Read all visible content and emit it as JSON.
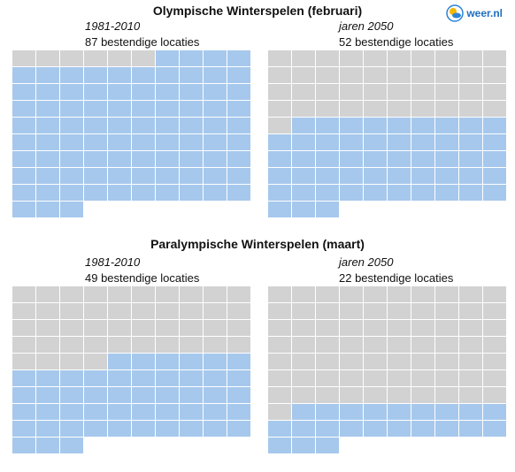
{
  "logo": {
    "text": "weer.nl",
    "icon": "sun-cloud-logo-icon"
  },
  "colors": {
    "reliable": "#a6c8ec",
    "unreliable": "#d2d2d2"
  },
  "sections": [
    {
      "title": "Olympische Winterspelen (februari)",
      "panels": [
        {
          "period": "1981-2010",
          "count_label": "87 bestendige locaties",
          "reliable": 87
        },
        {
          "period": "jaren 2050",
          "count_label": "52 bestendige locaties",
          "reliable": 52
        }
      ]
    },
    {
      "title": "Paralympische Winterspelen (maart)",
      "panels": [
        {
          "period": "1981-2010",
          "count_label": "49 bestendige locaties",
          "reliable": 49
        },
        {
          "period": "jaren 2050",
          "count_label": "22 bestendige locaties",
          "reliable": 22
        }
      ]
    }
  ],
  "chart_data": [
    {
      "type": "waffle",
      "title": "Olympische Winterspelen (februari)",
      "subtitle": "1981-2010",
      "total": 93,
      "value": 87,
      "label": "87 bestendige locaties"
    },
    {
      "type": "waffle",
      "title": "Olympische Winterspelen (februari)",
      "subtitle": "jaren 2050",
      "total": 93,
      "value": 52,
      "label": "52 bestendige locaties"
    },
    {
      "type": "waffle",
      "title": "Paralympische Winterspelen (maart)",
      "subtitle": "1981-2010",
      "total": 93,
      "value": 49,
      "label": "49 bestendige locaties"
    },
    {
      "type": "waffle",
      "title": "Paralympische Winterspelen (maart)",
      "subtitle": "jaren 2050",
      "total": 93,
      "value": 22,
      "label": "22 bestendige locaties"
    }
  ]
}
